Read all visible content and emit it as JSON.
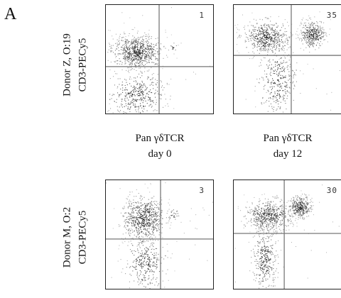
{
  "panel_letter": "A",
  "rows": [
    {
      "donor_label": "Donor Z, O:19",
      "y_label": "CD3-PECy5"
    },
    {
      "donor_label": "Donor M, O:2",
      "y_label": "CD3-PECy5"
    }
  ],
  "x_labels": [
    {
      "line1": "Pan γδTCR",
      "line2": "day 0"
    },
    {
      "line1": "Pan γδTCR",
      "line2": "day 12"
    }
  ],
  "plots": [
    {
      "quadrant_percent": "1"
    },
    {
      "quadrant_percent": "35"
    },
    {
      "quadrant_percent": "3"
    },
    {
      "quadrant_percent": "30"
    }
  ]
}
